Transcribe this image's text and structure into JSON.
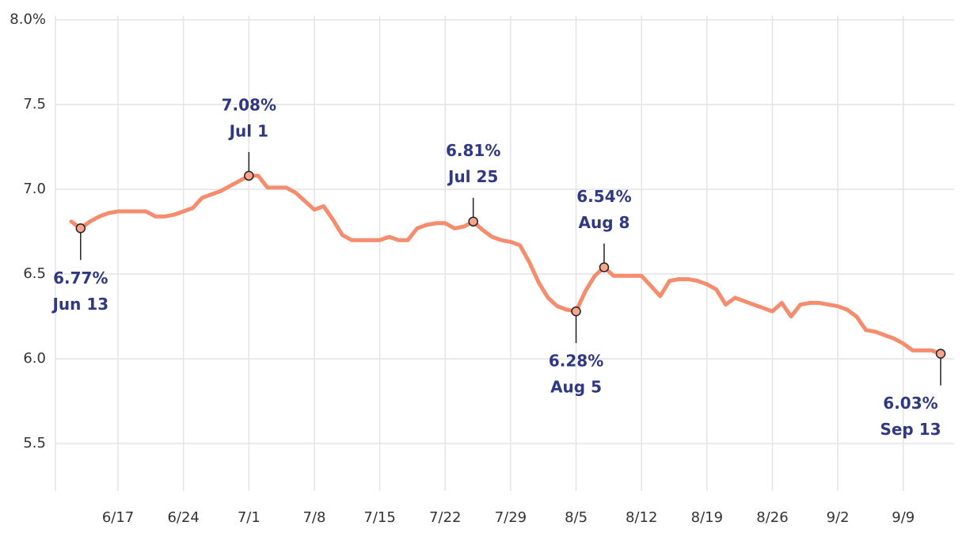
{
  "chart_data": {
    "type": "line",
    "x": [
      "6/12",
      "6/13",
      "6/14",
      "6/15",
      "6/16",
      "6/17",
      "6/18",
      "6/19",
      "6/20",
      "6/21",
      "6/22",
      "6/23",
      "6/24",
      "6/25",
      "6/26",
      "6/27",
      "6/28",
      "6/29",
      "6/30",
      "7/1",
      "7/2",
      "7/3",
      "7/4",
      "7/5",
      "7/6",
      "7/7",
      "7/8",
      "7/9",
      "7/10",
      "7/11",
      "7/12",
      "7/13",
      "7/14",
      "7/15",
      "7/16",
      "7/17",
      "7/18",
      "7/19",
      "7/20",
      "7/21",
      "7/22",
      "7/23",
      "7/24",
      "7/25",
      "7/26",
      "7/27",
      "7/28",
      "7/29",
      "7/30",
      "7/31",
      "8/1",
      "8/2",
      "8/3",
      "8/4",
      "8/5",
      "8/6",
      "8/7",
      "8/8",
      "8/9",
      "8/10",
      "8/11",
      "8/12",
      "8/13",
      "8/14",
      "8/15",
      "8/16",
      "8/17",
      "8/18",
      "8/19",
      "8/20",
      "8/21",
      "8/22",
      "8/23",
      "8/24",
      "8/25",
      "8/26",
      "8/27",
      "8/28",
      "8/29",
      "8/30",
      "8/31",
      "9/1",
      "9/2",
      "9/3",
      "9/4",
      "9/5",
      "9/6",
      "9/7",
      "9/8",
      "9/9",
      "9/10",
      "9/11",
      "9/12",
      "9/13"
    ],
    "values": [
      6.81,
      6.77,
      6.81,
      6.84,
      6.86,
      6.87,
      6.87,
      6.87,
      6.87,
      6.84,
      6.84,
      6.85,
      6.87,
      6.89,
      6.95,
      6.97,
      6.99,
      7.02,
      7.05,
      7.08,
      7.08,
      7.01,
      7.01,
      7.01,
      6.98,
      6.93,
      6.88,
      6.9,
      6.82,
      6.73,
      6.7,
      6.7,
      6.7,
      6.7,
      6.72,
      6.7,
      6.7,
      6.77,
      6.79,
      6.8,
      6.8,
      6.77,
      6.78,
      6.81,
      6.76,
      6.72,
      6.7,
      6.69,
      6.67,
      6.57,
      6.45,
      6.36,
      6.31,
      6.29,
      6.28,
      6.4,
      6.49,
      6.54,
      6.49,
      6.49,
      6.49,
      6.49,
      6.43,
      6.37,
      6.46,
      6.47,
      6.47,
      6.46,
      6.44,
      6.41,
      6.32,
      6.36,
      6.34,
      6.32,
      6.3,
      6.28,
      6.33,
      6.25,
      6.32,
      6.33,
      6.33,
      6.32,
      6.31,
      6.29,
      6.25,
      6.17,
      6.16,
      6.14,
      6.12,
      6.09,
      6.05,
      6.05,
      6.05,
      6.03
    ],
    "color": "#f68c6e",
    "ylim": [
      5.22,
      8.0
    ],
    "yticks": [
      {
        "value": 8.0,
        "label": "8.0%"
      },
      7.5,
      {
        "value": 7.0,
        "label": "7.0"
      },
      6.5,
      {
        "value": 6.0,
        "label": "6.0"
      },
      5.5
    ],
    "xticks": [
      "6/17",
      "6/24",
      "7/1",
      "7/8",
      "7/15",
      "7/22",
      "7/29",
      "8/5",
      "8/12",
      "8/19",
      "8/26",
      "9/2",
      "9/9"
    ],
    "grid": true,
    "annotations": [
      {
        "x": "6/13",
        "label": "6.77%",
        "sublabel": "Jun 13",
        "position": "below"
      },
      {
        "x": "7/1",
        "label": "7.08%",
        "sublabel": "Jul 1",
        "position": "above"
      },
      {
        "x": "7/25",
        "label": "6.81%",
        "sublabel": "Jul 25",
        "position": "above"
      },
      {
        "x": "8/5",
        "label": "6.28%",
        "sublabel": "Aug 5",
        "position": "below"
      },
      {
        "x": "8/8",
        "label": "6.54%",
        "sublabel": "Aug 8",
        "position": "above"
      },
      {
        "x": "9/13",
        "label": "6.03%",
        "sublabel": "Sep 13",
        "position": "below"
      }
    ]
  }
}
